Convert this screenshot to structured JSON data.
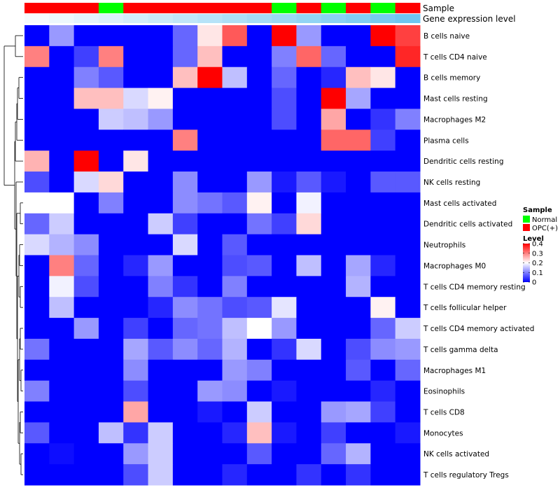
{
  "chart_data": {
    "type": "heatmap",
    "title": "",
    "annotation_rows": [
      {
        "name": "Sample",
        "values": [
          "OPC(+)",
          "OPC(+)",
          "OPC(+)",
          "Normal",
          "OPC(+)",
          "OPC(+)",
          "OPC(+)",
          "OPC(+)",
          "OPC(+)",
          "OPC(+)",
          "Normal",
          "OPC(+)",
          "Normal",
          "OPC(+)",
          "Normal",
          "OPC(+)"
        ]
      },
      {
        "name": "Gene expression level",
        "values": [
          0.02,
          0.04,
          0.06,
          0.08,
          0.1,
          0.12,
          0.14,
          0.16,
          0.18,
          0.2,
          0.22,
          0.24,
          0.26,
          0.28,
          0.3,
          0.32
        ]
      }
    ],
    "rows": [
      "B cells naive",
      "T cells CD4 naive",
      "B cells memory",
      "Mast cells resting",
      "Macrophages M2",
      "Plasma cells",
      "Dendritic cells resting",
      "NK cells resting",
      "Mast cells activated",
      "Dendritic cells activated",
      "Neutrophils",
      "Macrophages M0",
      "T cells CD4 memory resting",
      "T cells follicular helper",
      "T cells CD4 memory activated",
      "T cells gamma delta",
      "Macrophages M1",
      "Eosinophils",
      "T cells CD8",
      "Monocytes",
      "NK cells activated",
      "T cells regulatory  Tregs"
    ],
    "values": [
      [
        0,
        0.12,
        0,
        0,
        0,
        0,
        0.08,
        0.22,
        0.33,
        0,
        0.4,
        0.12,
        0,
        0,
        0.4,
        0.35
      ],
      [
        0.3,
        0,
        0.05,
        0.3,
        0,
        0,
        0.08,
        0.25,
        0,
        0,
        0.1,
        0.32,
        0.08,
        0,
        0,
        0.37
      ],
      [
        0,
        0,
        0.1,
        0.07,
        0,
        0,
        0.25,
        0.4,
        0.15,
        0,
        0.08,
        0,
        0.03,
        0.25,
        0.22,
        0
      ],
      [
        0,
        0,
        0.25,
        0.25,
        0.17,
        0.21,
        0,
        0,
        0,
        0,
        0.06,
        0,
        0.4,
        0.13,
        0,
        0
      ],
      [
        0,
        0,
        0,
        0.16,
        0.15,
        0.12,
        0,
        0,
        0,
        0,
        0.06,
        0,
        0.27,
        0,
        0.04,
        0.1
      ],
      [
        0,
        0,
        0,
        0,
        0,
        0,
        0.3,
        0,
        0,
        0,
        0,
        0,
        0.32,
        0.32,
        0.05,
        0
      ],
      [
        0.26,
        0,
        0.4,
        0,
        0.22,
        0,
        0,
        0,
        0,
        0,
        0,
        0,
        0,
        0,
        0,
        0
      ],
      [
        0.06,
        0,
        0.17,
        0.23,
        0,
        0,
        0.11,
        0,
        0,
        0.12,
        0.02,
        0.07,
        0.02,
        0,
        0.07,
        0.07
      ],
      [
        0.2,
        0.2,
        0,
        0.1,
        0,
        0,
        0.11,
        0.09,
        0.07,
        0.21,
        0,
        0.19,
        0,
        0,
        0,
        0
      ],
      [
        0.08,
        0.16,
        0,
        0,
        0,
        0.16,
        0.05,
        0,
        0,
        0.09,
        0.05,
        0.23,
        0,
        0,
        0,
        0
      ],
      [
        0.17,
        0.14,
        0.11,
        0,
        0,
        0,
        0.17,
        0,
        0.07,
        0,
        0,
        0,
        0,
        0,
        0,
        0
      ],
      [
        0,
        0.3,
        0.08,
        0,
        0.03,
        0.12,
        0,
        0,
        0.06,
        0.07,
        0,
        0.15,
        0,
        0.13,
        0.03,
        0
      ],
      [
        0,
        0.19,
        0.06,
        0,
        0,
        0.1,
        0.04,
        0,
        0.1,
        0,
        0,
        0,
        0,
        0.14,
        0,
        0
      ],
      [
        0,
        0.15,
        0,
        0,
        0,
        0.03,
        0.11,
        0.09,
        0.06,
        0.07,
        0.18,
        0,
        0,
        0,
        0.21,
        0
      ],
      [
        0,
        0,
        0.12,
        0,
        0.05,
        0,
        0.08,
        0.09,
        0.15,
        0.2,
        0.12,
        0,
        0,
        0,
        0.08,
        0.16
      ],
      [
        0.09,
        0,
        0,
        0,
        0.13,
        0.07,
        0.11,
        0.08,
        0.14,
        0,
        0.04,
        0.17,
        0,
        0.06,
        0.11,
        0.12
      ],
      [
        0,
        0,
        0,
        0,
        0.11,
        0,
        0,
        0,
        0.12,
        0.1,
        0,
        0,
        0,
        0.07,
        0,
        0.08
      ],
      [
        0.1,
        0,
        0,
        0,
        0.06,
        0,
        0,
        0.12,
        0.11,
        0,
        0.02,
        0,
        0,
        0,
        0.03,
        0
      ],
      [
        0,
        0,
        0,
        0,
        0.27,
        0,
        0,
        0.02,
        0,
        0.16,
        0,
        0,
        0.12,
        0.13,
        0.05,
        0
      ],
      [
        0.07,
        0,
        0,
        0.15,
        0.04,
        0.16,
        0,
        0,
        0.03,
        0.25,
        0.02,
        0,
        0.05,
        0,
        0,
        0.02
      ],
      [
        0,
        0.01,
        0,
        0,
        0.12,
        0.16,
        0,
        0,
        0,
        0.07,
        0,
        0,
        0.08,
        0.14,
        0,
        0
      ],
      [
        0,
        0,
        0,
        0,
        0.06,
        0.16,
        0,
        0,
        0.03,
        0,
        0,
        0.04,
        0,
        0.04,
        0,
        0
      ]
    ],
    "color_scale": {
      "min": 0,
      "mid": 0.2,
      "max": 0.4,
      "low": "#0000ff",
      "midcolor": "#ffffff",
      "high": "#ff0000"
    },
    "legend": {
      "sample_title": "Sample",
      "sample_entries": [
        {
          "label": "Normal",
          "color": "#00ff00"
        },
        {
          "label": "OPC(+)",
          "color": "#ff0000"
        }
      ],
      "level_title": "Level",
      "level_ticks": [
        "0.4",
        "0.3",
        "0.2",
        "0.1",
        "0"
      ],
      "level_tick_values": [
        0.4,
        0.3,
        0.2,
        0.1,
        0
      ]
    },
    "gene_expression_scale": {
      "low": "#ffffff",
      "high": "#6ec6f0"
    },
    "legend_placement": "right"
  }
}
